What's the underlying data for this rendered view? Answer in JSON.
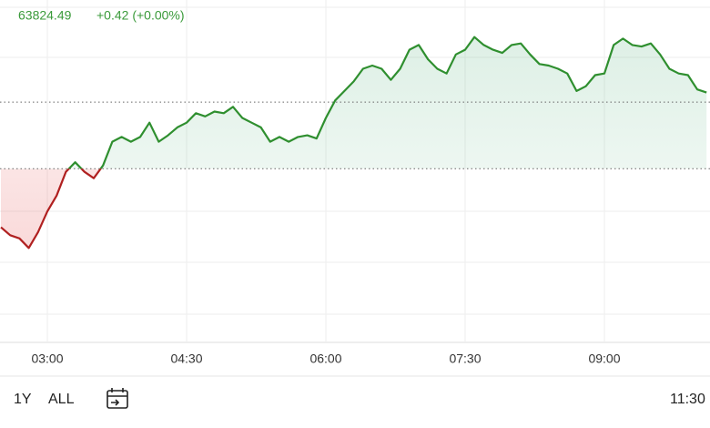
{
  "chart_data": {
    "type": "line",
    "price": 63824.49,
    "change": "+0.42 (+0.00%)",
    "baseline": 63824.07,
    "up_color": "#2f8f2f",
    "down_color": "#b02020",
    "categories": [
      null,
      null,
      null,
      null,
      null,
      "03:00",
      null,
      null,
      null,
      null,
      null,
      null,
      null,
      null,
      null,
      null,
      null,
      null,
      null,
      null,
      "04:30",
      null,
      null,
      null,
      null,
      null,
      null,
      null,
      null,
      null,
      null,
      null,
      null,
      null,
      null,
      "06:00",
      null,
      null,
      null,
      null,
      null,
      null,
      null,
      null,
      null,
      null,
      null,
      null,
      null,
      null,
      "07:30",
      null,
      null,
      null,
      null,
      null,
      null,
      null,
      null,
      null,
      null,
      null,
      null,
      null,
      null,
      "09:00",
      null,
      null,
      null,
      null,
      null,
      null,
      null,
      null,
      null,
      null,
      null
    ],
    "values": [
      63823.7,
      63823.65,
      63823.63,
      63823.57,
      63823.67,
      63823.8,
      63823.9,
      63824.05,
      63824.11,
      63824.05,
      63824.01,
      63824.09,
      63824.24,
      63824.27,
      63824.24,
      63824.27,
      63824.36,
      63824.24,
      63824.28,
      63824.33,
      63824.36,
      63824.42,
      63824.4,
      63824.43,
      63824.42,
      63824.46,
      63824.39,
      63824.36,
      63824.33,
      63824.24,
      63824.27,
      63824.24,
      63824.27,
      63824.28,
      63824.26,
      63824.39,
      63824.5,
      63824.56,
      63824.62,
      63824.7,
      63824.72,
      63824.7,
      63824.63,
      63824.7,
      63824.82,
      63824.85,
      63824.76,
      63824.7,
      63824.67,
      63824.79,
      63824.82,
      63824.9,
      63824.85,
      63824.82,
      63824.8,
      63824.85,
      63824.86,
      63824.79,
      63824.73,
      63824.72,
      63824.7,
      63824.67,
      63824.56,
      63824.59,
      63824.66,
      63824.67,
      63824.85,
      63824.89,
      63824.85,
      63824.84,
      63824.86,
      63824.79,
      63824.7,
      63824.67,
      63824.66,
      63824.57,
      63824.55
    ],
    "ylim": [
      63822.98,
      63825.105
    ]
  },
  "toolbar": {
    "ranges": [
      "1Y",
      "ALL"
    ],
    "time": "11:30"
  }
}
